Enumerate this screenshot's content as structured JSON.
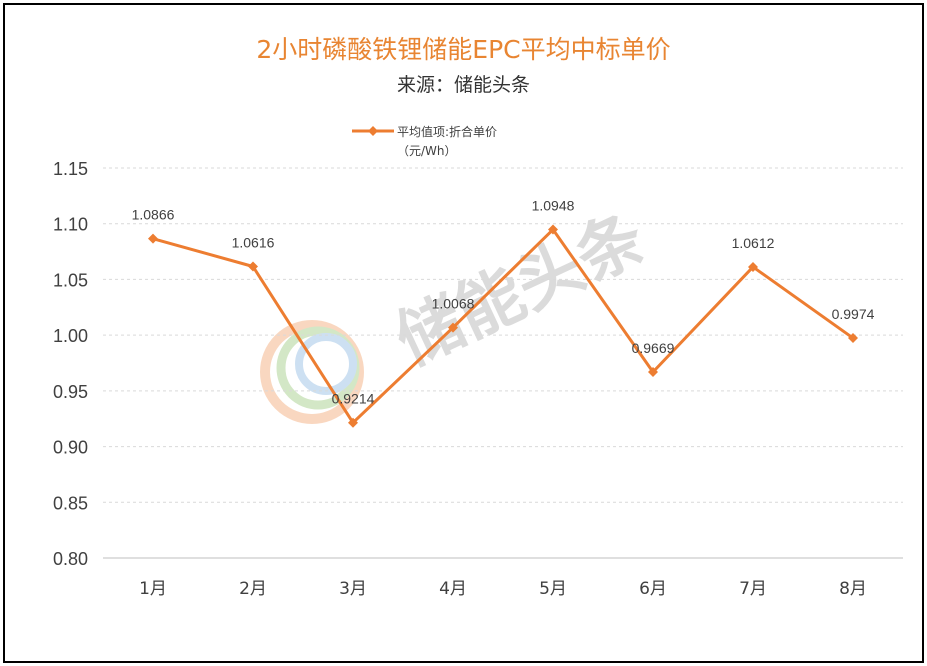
{
  "chart_data": {
    "type": "line",
    "title": "2小时磷酸铁锂储能EPC平均中标单价",
    "subtitle": "来源：储能头条",
    "categories": [
      "1月",
      "2月",
      "3月",
      "4月",
      "5月",
      "6月",
      "7月",
      "8月"
    ],
    "series": [
      {
        "name": "平均值项:折合单价（元/Wh）",
        "legend_line1": "平均值项:折合单价",
        "legend_line2": "（元/Wh）",
        "values": [
          1.0866,
          1.0616,
          0.9214,
          1.0068,
          1.0948,
          0.9669,
          1.0612,
          0.9974
        ],
        "labels": [
          "1.0866",
          "1.0616",
          "0.9214",
          "1.0068",
          "1.0948",
          "0.9669",
          "1.0612",
          "0.9974"
        ],
        "color": "#ed7d31"
      }
    ],
    "ylim": [
      0.8,
      1.15
    ],
    "yticks": [
      "0.80",
      "0.85",
      "0.90",
      "0.95",
      "1.00",
      "1.05",
      "1.10",
      "1.15"
    ],
    "grid": true,
    "legend_position": "top-center"
  },
  "watermark": {
    "text": "储能头条",
    "logo_icon": "circular-swirl-logo-icon"
  },
  "colors": {
    "title": "#e88532",
    "line": "#ed7d31",
    "grid": "#d9d9d9",
    "frame": "#000000"
  }
}
